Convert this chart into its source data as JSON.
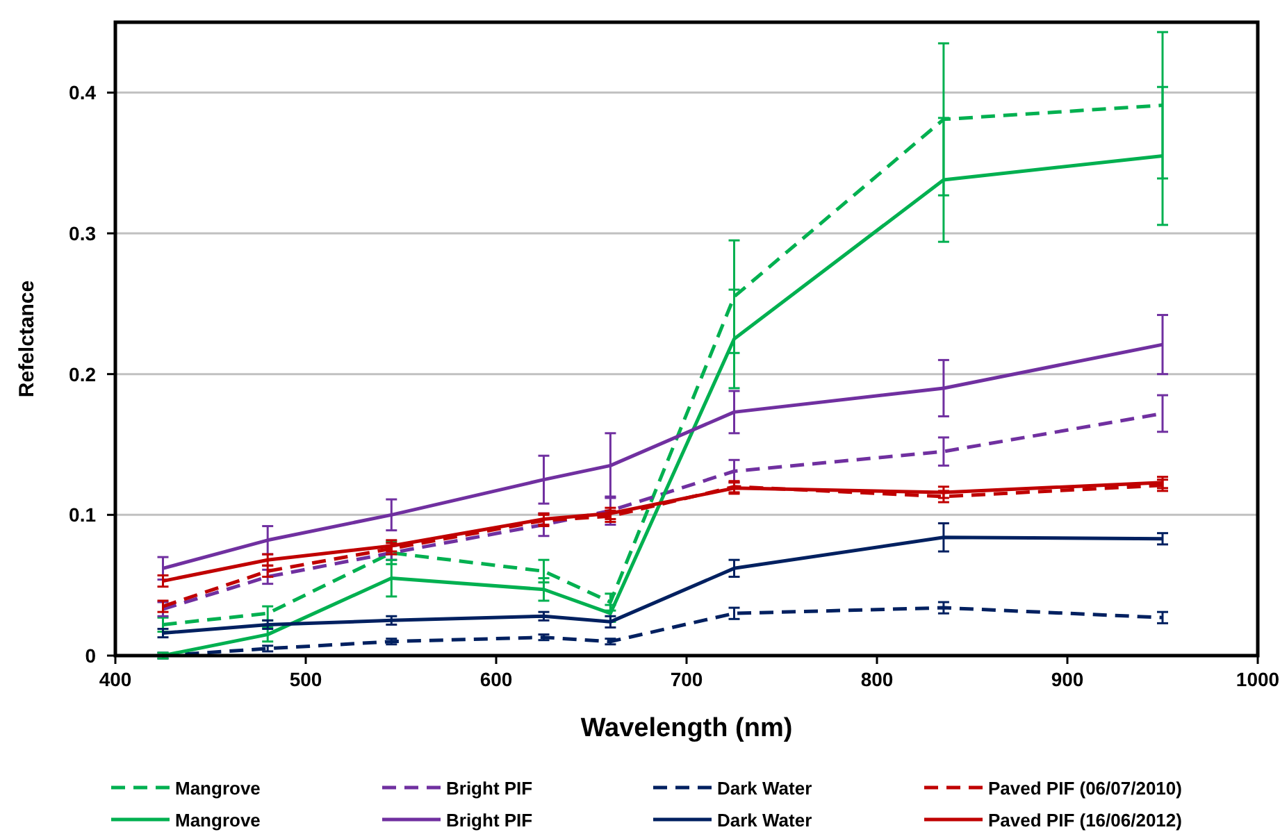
{
  "chart_data": {
    "type": "line",
    "xlabel": "Wavelength (nm)",
    "ylabel": "Refelctance",
    "x": [
      425,
      480,
      545,
      625,
      660,
      725,
      835,
      950
    ],
    "xlim": [
      400,
      1000
    ],
    "xticks": [
      400,
      500,
      600,
      700,
      800,
      900,
      1000
    ],
    "ylim": [
      0,
      0.45
    ],
    "yticks": [
      0,
      0.1,
      0.2,
      0.3,
      0.4
    ],
    "grid": "y",
    "legend": "bottom",
    "series": [
      {
        "name": "Mangrove",
        "color": "#00b050",
        "line_style": "dashed",
        "values": [
          0.022,
          0.03,
          0.073,
          0.06,
          0.038,
          0.255,
          0.381,
          0.391
        ],
        "errors": [
          0.005,
          0.005,
          0.008,
          0.008,
          0.006,
          0.04,
          0.054,
          0.052
        ]
      },
      {
        "name": "Bright PIF",
        "color": "#7030a0",
        "line_style": "dashed",
        "values": [
          0.033,
          0.056,
          0.073,
          0.093,
          0.103,
          0.131,
          0.145,
          0.172
        ],
        "errors": [
          0.005,
          0.005,
          0.005,
          0.008,
          0.01,
          0.008,
          0.01,
          0.013
        ]
      },
      {
        "name": "Dark Water",
        "color": "#002060",
        "line_style": "dashed",
        "values": [
          0.0,
          0.005,
          0.01,
          0.013,
          0.01,
          0.03,
          0.034,
          0.027
        ],
        "errors": [
          0.002,
          0.002,
          0.002,
          0.002,
          0.002,
          0.004,
          0.004,
          0.004
        ]
      },
      {
        "name": "Paved PIF (06/07/2010)",
        "color": "#c00000",
        "line_style": "dashed",
        "values": [
          0.035,
          0.06,
          0.076,
          0.096,
          0.099,
          0.12,
          0.113,
          0.121
        ],
        "errors": [
          0.004,
          0.004,
          0.004,
          0.004,
          0.004,
          0.004,
          0.004,
          0.004
        ]
      },
      {
        "name": "Mangrove",
        "color": "#00b050",
        "line_style": "solid",
        "values": [
          0.0,
          0.015,
          0.055,
          0.047,
          0.03,
          0.225,
          0.338,
          0.355
        ],
        "errors": [
          0.002,
          0.005,
          0.013,
          0.008,
          0.006,
          0.035,
          0.044,
          0.049
        ]
      },
      {
        "name": "Bright PIF",
        "color": "#7030a0",
        "line_style": "solid",
        "values": [
          0.062,
          0.082,
          0.1,
          0.125,
          0.135,
          0.173,
          0.19,
          0.221
        ],
        "errors": [
          0.008,
          0.01,
          0.011,
          0.017,
          0.023,
          0.015,
          0.02,
          0.021
        ]
      },
      {
        "name": "Dark Water",
        "color": "#002060",
        "line_style": "solid",
        "values": [
          0.016,
          0.022,
          0.025,
          0.028,
          0.024,
          0.062,
          0.084,
          0.083
        ],
        "errors": [
          0.003,
          0.003,
          0.003,
          0.003,
          0.004,
          0.006,
          0.01,
          0.004
        ]
      },
      {
        "name": "Paved PIF (16/06/2012)",
        "color": "#c00000",
        "line_style": "solid",
        "values": [
          0.053,
          0.068,
          0.078,
          0.097,
          0.101,
          0.119,
          0.116,
          0.123
        ],
        "errors": [
          0.004,
          0.004,
          0.004,
          0.004,
          0.004,
          0.004,
          0.004,
          0.004
        ]
      }
    ]
  }
}
